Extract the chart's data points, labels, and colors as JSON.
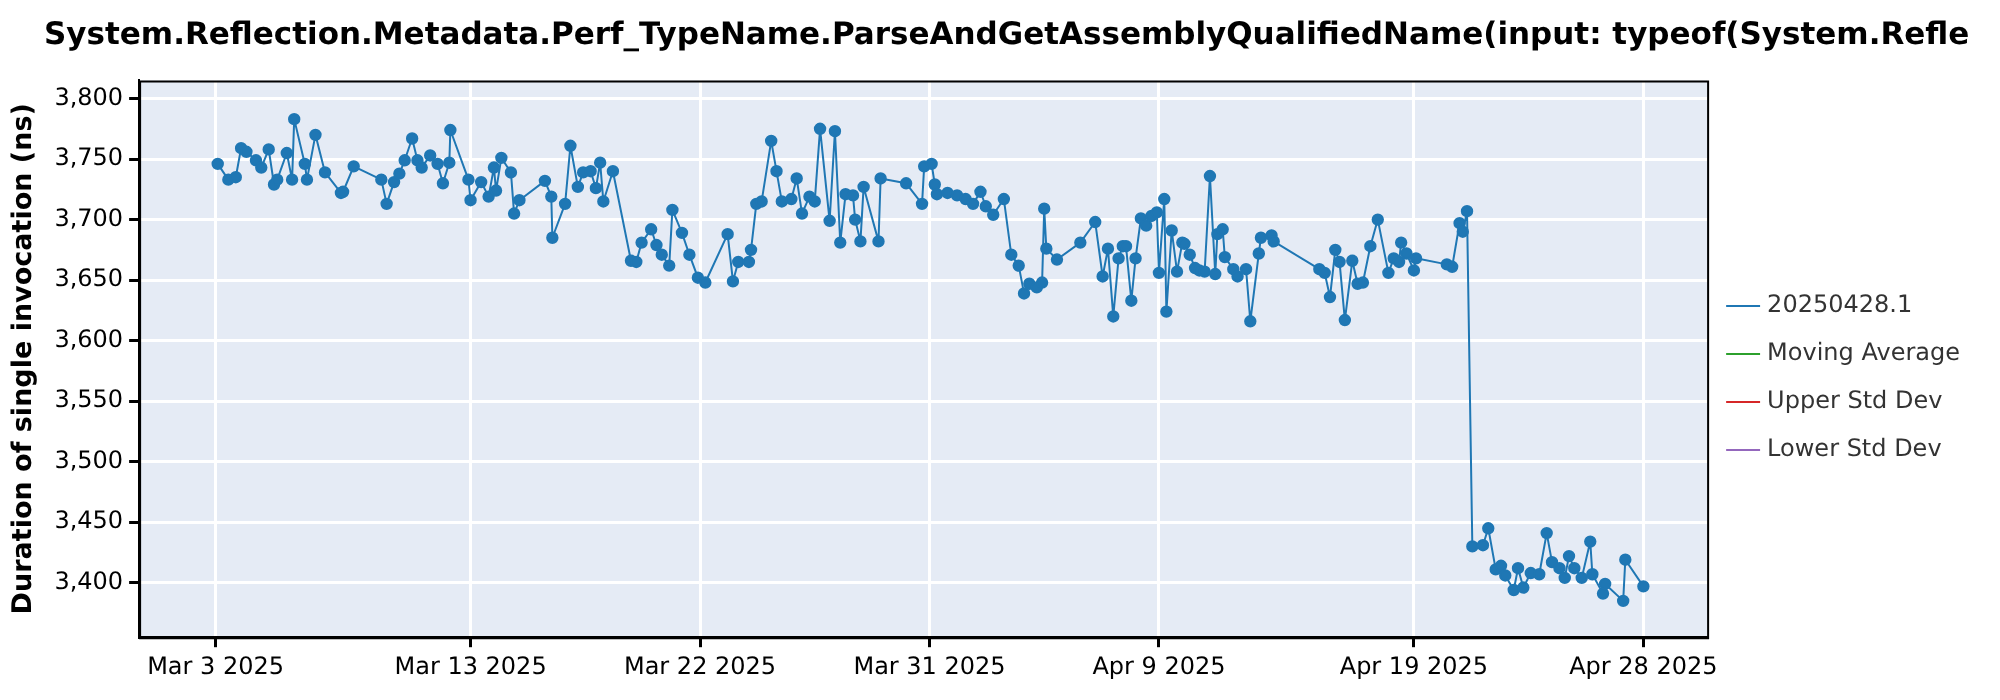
{
  "chart_data": {
    "type": "line",
    "title": "System.Reflection.Metadata.Perf_TypeName.ParseAndGetAssemblyQualifiedName(input: typeof(System.Refle",
    "ylabel": "Duration of single invocation (ns)",
    "x": [
      "2025-03-03T02:00",
      "2025-03-03T12:00",
      "2025-03-03T19:00",
      "2025-03-04T00:00",
      "2025-03-04T05:00",
      "2025-03-04T14:00",
      "2025-03-04T19:00",
      "2025-03-05T02:00",
      "2025-03-05T07:00",
      "2025-03-05T10:00",
      "2025-03-05T19:00",
      "2025-03-06T00:00",
      "2025-03-06T02:00",
      "2025-03-06T12:00",
      "2025-03-06T14:00",
      "2025-03-06T22:00",
      "2025-03-07T07:00",
      "2025-03-07T22:00",
      "2025-03-08T00:00",
      "2025-03-08T10:00",
      "2025-03-09T12:00",
      "2025-03-09T17:00",
      "2025-03-10T00:00",
      "2025-03-10T05:00",
      "2025-03-10T10:00",
      "2025-03-10T17:00",
      "2025-03-10T22:00",
      "2025-03-11T02:00",
      "2025-03-11T10:00",
      "2025-03-11T17:00",
      "2025-03-11T22:00",
      "2025-03-12T04:00",
      "2025-03-12T05:00",
      "2025-03-12T22:00",
      "2025-03-13T00:00",
      "2025-03-13T10:00",
      "2025-03-13T17:00",
      "2025-03-13T22:00",
      "2025-03-14T00:00",
      "2025-03-14T05:00",
      "2025-03-14T14:00",
      "2025-03-14T17:00",
      "2025-03-14T22:00",
      "2025-03-15T22:00",
      "2025-03-16T04:00",
      "2025-03-16T05:00",
      "2025-03-16T17:00",
      "2025-03-16T22:00",
      "2025-03-17T05:00",
      "2025-03-17T10:00",
      "2025-03-17T17:00",
      "2025-03-17T22:00",
      "2025-03-18T02:00",
      "2025-03-18T05:00",
      "2025-03-18T14:00",
      "2025-03-19T07:00",
      "2025-03-19T12:00",
      "2025-03-19T17:00",
      "2025-03-20T02:00",
      "2025-03-20T07:00",
      "2025-03-20T12:00",
      "2025-03-20T19:00",
      "2025-03-20T22:00",
      "2025-03-21T07:00",
      "2025-03-21T14:00",
      "2025-03-21T22:00",
      "2025-03-22T05:00",
      "2025-03-23T02:00",
      "2025-03-23T07:00",
      "2025-03-23T12:00",
      "2025-03-23T22:00",
      "2025-03-24T00:00",
      "2025-03-24T05:00",
      "2025-03-24T10:00",
      "2025-03-24T19:00",
      "2025-03-25T00:00",
      "2025-03-25T05:00",
      "2025-03-25T14:00",
      "2025-03-25T19:00",
      "2025-03-26T00:00",
      "2025-03-26T07:00",
      "2025-03-26T12:00",
      "2025-03-26T17:00",
      "2025-03-27T02:00",
      "2025-03-27T07:00",
      "2025-03-27T12:00",
      "2025-03-27T17:00",
      "2025-03-28T00:00",
      "2025-03-28T02:00",
      "2025-03-28T07:00",
      "2025-03-28T10:00",
      "2025-03-29T00:00",
      "2025-03-29T02:00",
      "2025-03-30T02:00",
      "2025-03-30T17:00",
      "2025-03-30T19:00",
      "2025-03-31T02:00",
      "2025-03-31T05:00",
      "2025-03-31T07:00",
      "2025-03-31T17:00",
      "2025-04-01T02:00",
      "2025-04-01T10:00",
      "2025-04-01T17:00",
      "2025-04-02T00:00",
      "2025-04-02T05:00",
      "2025-04-02T12:00",
      "2025-04-02T22:00",
      "2025-04-03T05:00",
      "2025-04-03T12:00",
      "2025-04-03T17:00",
      "2025-04-03T22:00",
      "2025-04-04T05:00",
      "2025-04-04T10:00",
      "2025-04-04T12:00",
      "2025-04-04T14:00",
      "2025-04-05T00:00",
      "2025-04-05T22:00",
      "2025-04-06T12:00",
      "2025-04-06T19:00",
      "2025-04-07T00:00",
      "2025-04-07T05:00",
      "2025-04-07T10:00",
      "2025-04-07T14:00",
      "2025-04-07T17:00",
      "2025-04-07T22:00",
      "2025-04-08T02:00",
      "2025-04-08T07:00",
      "2025-04-08T12:00",
      "2025-04-08T17:00",
      "2025-04-08T22:00",
      "2025-04-09T00:00",
      "2025-04-09T05:00",
      "2025-04-09T07:00",
      "2025-04-09T12:00",
      "2025-04-09T17:00",
      "2025-04-09T22:00",
      "2025-04-10T00:00",
      "2025-04-10T05:00",
      "2025-04-10T10:00",
      "2025-04-10T14:00",
      "2025-04-10T19:00",
      "2025-04-11T00:00",
      "2025-04-11T05:00",
      "2025-04-11T07:00",
      "2025-04-11T12:00",
      "2025-04-11T14:00",
      "2025-04-11T22:00",
      "2025-04-12T02:00",
      "2025-04-12T10:00",
      "2025-04-12T14:00",
      "2025-04-12T22:00",
      "2025-04-13T00:00",
      "2025-04-13T10:00",
      "2025-04-13T12:00",
      "2025-04-15T07:00",
      "2025-04-15T12:00",
      "2025-04-15T17:00",
      "2025-04-15T22:00",
      "2025-04-16T02:00",
      "2025-04-16T07:00",
      "2025-04-16T14:00",
      "2025-04-16T19:00",
      "2025-04-17T00:00",
      "2025-04-17T07:00",
      "2025-04-17T14:00",
      "2025-04-18T00:00",
      "2025-04-18T05:00",
      "2025-04-18T10:00",
      "2025-04-18T12:00",
      "2025-04-18T17:00",
      "2025-04-19T00:00",
      "2025-04-19T02:00",
      "2025-04-20T07:00",
      "2025-04-20T12:00",
      "2025-04-20T19:00",
      "2025-04-20T22:00",
      "2025-04-21T02:00",
      "2025-04-21T07:00",
      "2025-04-21T17:00",
      "2025-04-21T22:00",
      "2025-04-22T05:00",
      "2025-04-22T10:00",
      "2025-04-22T14:00",
      "2025-04-22T22:00",
      "2025-04-23T02:00",
      "2025-04-23T07:00",
      "2025-04-23T14:00",
      "2025-04-23T22:00",
      "2025-04-24T05:00",
      "2025-04-24T10:00",
      "2025-04-24T17:00",
      "2025-04-24T22:00",
      "2025-04-25T02:00",
      "2025-04-25T07:00",
      "2025-04-25T14:00",
      "2025-04-25T22:00",
      "2025-04-26T00:00",
      "2025-04-26T10:00",
      "2025-04-26T12:00",
      "2025-04-27T05:00",
      "2025-04-27T07:00",
      "2025-04-28T00:00"
    ],
    "series": [
      {
        "name": "20250428.1",
        "color": "#1f77b4",
        "values": [
          3746,
          3733,
          3735,
          3759,
          3756,
          3749,
          3743,
          3758,
          3729,
          3733,
          3755,
          3733,
          3783,
          3746,
          3733,
          3770,
          3739,
          3722,
          3723,
          3744,
          3733,
          3713,
          3731,
          3738,
          3749,
          3767,
          3749,
          3743,
          3753,
          3746,
          3730,
          3747,
          3774,
          3733,
          3716,
          3731,
          3719,
          3743,
          3724,
          3751,
          3739,
          3705,
          3716,
          3732,
          3719,
          3685,
          3713,
          3761,
          3727,
          3739,
          3740,
          3726,
          3747,
          3715,
          3740,
          3666,
          3665,
          3681,
          3692,
          3679,
          3671,
          3662,
          3708,
          3689,
          3671,
          3652,
          3648,
          3688,
          3649,
          3665,
          3665,
          3675,
          3713,
          3715,
          3765,
          3740,
          3715,
          3717,
          3734,
          3705,
          3719,
          3715,
          3775,
          3699,
          3773,
          3681,
          3721,
          3720,
          3700,
          3682,
          3727,
          3682,
          3734,
          3730,
          3713,
          3744,
          3746,
          3729,
          3721,
          3722,
          3720,
          3717,
          3713,
          3723,
          3711,
          3704,
          3717,
          3671,
          3662,
          3639,
          3647,
          3644,
          3648,
          3709,
          3676,
          3667,
          3681,
          3698,
          3653,
          3676,
          3620,
          3668,
          3678,
          3678,
          3633,
          3668,
          3701,
          3695,
          3703,
          3706,
          3656,
          3717,
          3624,
          3691,
          3657,
          3681,
          3680,
          3671,
          3660,
          3658,
          3657,
          3736,
          3655,
          3688,
          3692,
          3669,
          3659,
          3653,
          3659,
          3616,
          3672,
          3685,
          3687,
          3682,
          3659,
          3656,
          3636,
          3675,
          3665,
          3617,
          3666,
          3647,
          3648,
          3678,
          3700,
          3656,
          3668,
          3665,
          3681,
          3672,
          3658,
          3668,
          3663,
          3661,
          3697,
          3690,
          3707,
          3430,
          3431,
          3445,
          3411,
          3414,
          3406,
          3394,
          3412,
          3396,
          3408,
          3407,
          3441,
          3417,
          3412,
          3404,
          3422,
          3412,
          3404,
          3434,
          3407,
          3391,
          3399,
          3385,
          3419,
          3397
        ]
      },
      {
        "name": "Moving Average",
        "color": "#2ca02c",
        "values": [
          null,
          null,
          null,
          null,
          null,
          null,
          null,
          null,
          null,
          null,
          null,
          null,
          null,
          null,
          null,
          null,
          null,
          null,
          null,
          null,
          null,
          null,
          null,
          null,
          null,
          null,
          null,
          null,
          null,
          null,
          null,
          null,
          null,
          null,
          null,
          null,
          null,
          null,
          null,
          null,
          null,
          null,
          null,
          null,
          null,
          null,
          null,
          null,
          null,
          null,
          null,
          null,
          null,
          null,
          null,
          null,
          null,
          null,
          null,
          null,
          null,
          null,
          null,
          null,
          null,
          null,
          null,
          null,
          null,
          null,
          null,
          null,
          null,
          null,
          null,
          null,
          null,
          null,
          null,
          null,
          null,
          null,
          null,
          null,
          null,
          null,
          null,
          null,
          null,
          null,
          null,
          null,
          null,
          null,
          null,
          null,
          null,
          null,
          null,
          null,
          null,
          null,
          null,
          null,
          null,
          null,
          null,
          null,
          null,
          null,
          null,
          null,
          null,
          null,
          null,
          null,
          null,
          null,
          null,
          null,
          null,
          null,
          null,
          null,
          null,
          null,
          null,
          null,
          null,
          null,
          null,
          null,
          null,
          null,
          null,
          null,
          null,
          null,
          null,
          null,
          null,
          null,
          null,
          null,
          null,
          null,
          null,
          null,
          null,
          null,
          null,
          null,
          null,
          null,
          null,
          null,
          null,
          null,
          null,
          null,
          null,
          null,
          null,
          null,
          null,
          null,
          null,
          null,
          null,
          null,
          null,
          null,
          null,
          null,
          null,
          null,
          null,
          null,
          null,
          null,
          null,
          null,
          null,
          null,
          null,
          null,
          null,
          null,
          null,
          null,
          null,
          null,
          null,
          null,
          null,
          null,
          null,
          null,
          null,
          null,
          null,
          null
        ]
      },
      {
        "name": "Upper Std Dev",
        "color": "#d62728",
        "values": [
          null,
          null,
          null,
          null,
          null,
          null,
          null,
          null,
          null,
          null,
          null,
          null,
          null,
          null,
          null,
          null,
          null,
          null,
          null,
          null,
          null,
          null,
          null,
          null,
          null,
          null,
          null,
          null,
          null,
          null,
          null,
          null,
          null,
          null,
          null,
          null,
          null,
          null,
          null,
          null,
          null,
          null,
          null,
          null,
          null,
          null,
          null,
          null,
          null,
          null,
          null,
          null,
          null,
          null,
          null,
          null,
          null,
          null,
          null,
          null,
          null,
          null,
          null,
          null,
          null,
          null,
          null,
          null,
          null,
          null,
          null,
          null,
          null,
          null,
          null,
          null,
          null,
          null,
          null,
          null,
          null,
          null,
          null,
          null,
          null,
          null,
          null,
          null,
          null,
          null,
          null,
          null,
          null,
          null,
          null,
          null,
          null,
          null,
          null,
          null,
          null,
          null,
          null,
          null,
          null,
          null,
          null,
          null,
          null,
          null,
          null,
          null,
          null,
          null,
          null,
          null,
          null,
          null,
          null,
          null,
          null,
          null,
          null,
          null,
          null,
          null,
          null,
          null,
          null,
          null,
          null,
          null,
          null,
          null,
          null,
          null,
          null,
          null,
          null,
          null,
          null,
          null,
          null,
          null,
          null,
          null,
          null,
          null,
          null,
          null,
          null,
          null,
          null,
          null,
          null,
          null,
          null,
          null,
          null,
          null,
          null,
          null,
          null,
          null,
          null,
          null,
          null,
          null,
          null,
          null,
          null,
          null,
          null,
          null,
          null,
          null,
          null,
          null,
          null,
          null,
          null,
          null,
          null,
          null,
          null,
          null,
          null,
          null,
          null,
          null,
          null,
          null,
          null,
          null,
          null,
          null,
          null,
          null,
          null,
          null,
          null,
          null
        ]
      },
      {
        "name": "Lower Std Dev",
        "color": "#9467bd",
        "values": [
          null,
          null,
          null,
          null,
          null,
          null,
          null,
          null,
          null,
          null,
          null,
          null,
          null,
          null,
          null,
          null,
          null,
          null,
          null,
          null,
          null,
          null,
          null,
          null,
          null,
          null,
          null,
          null,
          null,
          null,
          null,
          null,
          null,
          null,
          null,
          null,
          null,
          null,
          null,
          null,
          null,
          null,
          null,
          null,
          null,
          null,
          null,
          null,
          null,
          null,
          null,
          null,
          null,
          null,
          null,
          null,
          null,
          null,
          null,
          null,
          null,
          null,
          null,
          null,
          null,
          null,
          null,
          null,
          null,
          null,
          null,
          null,
          null,
          null,
          null,
          null,
          null,
          null,
          null,
          null,
          null,
          null,
          null,
          null,
          null,
          null,
          null,
          null,
          null,
          null,
          null,
          null,
          null,
          null,
          null,
          null,
          null,
          null,
          null,
          null,
          null,
          null,
          null,
          null,
          null,
          null,
          null,
          null,
          null,
          null,
          null,
          null,
          null,
          null,
          null,
          null,
          null,
          null,
          null,
          null,
          null,
          null,
          null,
          null,
          null,
          null,
          null,
          null,
          null,
          null,
          null,
          null,
          null,
          null,
          null,
          null,
          null,
          null,
          null,
          null,
          null,
          null,
          null,
          null,
          null,
          null,
          null,
          null,
          null,
          null,
          null,
          null,
          null,
          null,
          null,
          null,
          null,
          null,
          null,
          null,
          null,
          null,
          null,
          null,
          null,
          null,
          null,
          null,
          null,
          null,
          null,
          null,
          null,
          null,
          null,
          null,
          null,
          null,
          null,
          null,
          null,
          null,
          null,
          null,
          null,
          null,
          null,
          null,
          null,
          null,
          null,
          null,
          null,
          null,
          null,
          null,
          null,
          null,
          null,
          null,
          null,
          null
        ]
      }
    ],
    "xlim": [
      "2025-02-28T00:00",
      "2025-04-30T12:00"
    ],
    "xticks": [
      {
        "value": "2025-03-03",
        "label": "Mar 3 2025"
      },
      {
        "value": "2025-03-13",
        "label": "Mar 13 2025"
      },
      {
        "value": "2025-03-22",
        "label": "Mar 22 2025"
      },
      {
        "value": "2025-03-31",
        "label": "Mar 31 2025"
      },
      {
        "value": "2025-04-09",
        "label": "Apr 9 2025"
      },
      {
        "value": "2025-04-19",
        "label": "Apr 19 2025"
      },
      {
        "value": "2025-04-28",
        "label": "Apr 28 2025"
      }
    ],
    "ylim": [
      3355,
      3815
    ],
    "yticks": [
      {
        "value": 3400,
        "label": "3,400"
      },
      {
        "value": 3450,
        "label": "3,450"
      },
      {
        "value": 3500,
        "label": "3,500"
      },
      {
        "value": 3550,
        "label": "3,550"
      },
      {
        "value": 3600,
        "label": "3,600"
      },
      {
        "value": 3650,
        "label": "3,650"
      },
      {
        "value": 3700,
        "label": "3,700"
      },
      {
        "value": 3750,
        "label": "3,750"
      },
      {
        "value": 3800,
        "label": "3,800"
      }
    ],
    "grid": true,
    "legend": "right",
    "marker": "circle",
    "line_style": "solid"
  }
}
